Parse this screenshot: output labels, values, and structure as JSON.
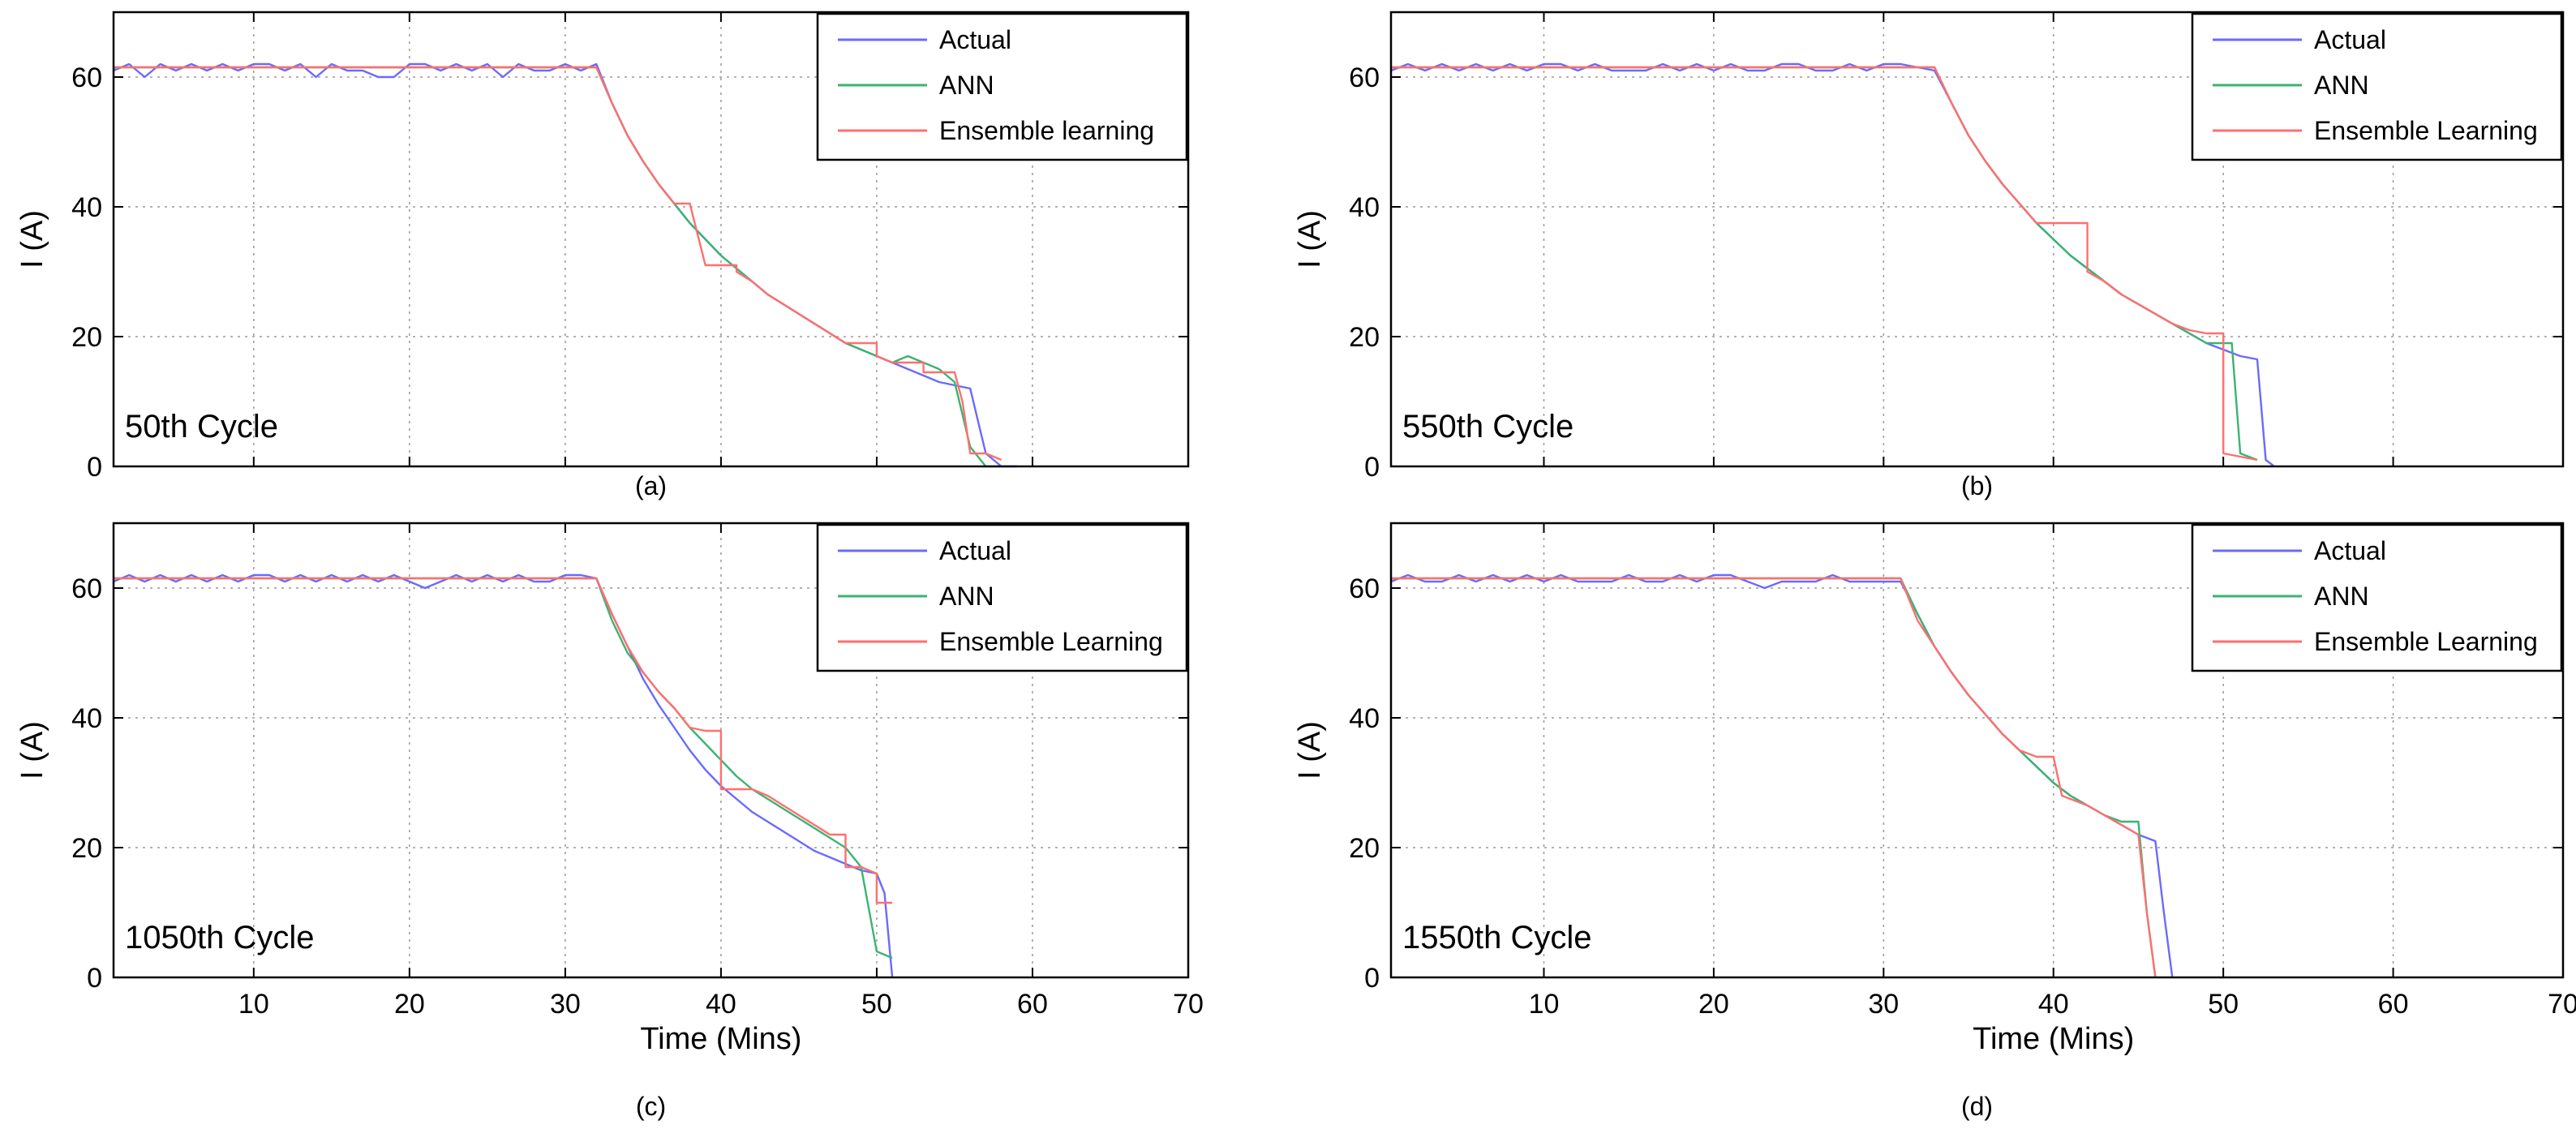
{
  "colors": {
    "actual": "#6a6aff",
    "ann": "#3cb371",
    "ensemble": "#ff6f6f",
    "axis": "#000000",
    "grid": "#9a9a9a"
  },
  "chart_data": [
    {
      "type": "line",
      "panel": "(a)",
      "annotation": "50th Cycle",
      "xlabel": "",
      "ylabel": "I (A)",
      "xlim": [
        1,
        70
      ],
      "ylim": [
        0,
        70
      ],
      "xticks": [
        10,
        20,
        30,
        40,
        50,
        60,
        70
      ],
      "yticks": [
        0,
        20,
        40,
        60
      ],
      "show_x_ticklabels": false,
      "legend": "top-right",
      "series": [
        {
          "name": "Actual",
          "key": "actual",
          "x": [
            1,
            2,
            3,
            4,
            5,
            6,
            7,
            8,
            9,
            10,
            11,
            12,
            13,
            14,
            15,
            16,
            17,
            18,
            19,
            20,
            21,
            22,
            23,
            24,
            25,
            26,
            27,
            28,
            29,
            30,
            31,
            32,
            33,
            34,
            35,
            36,
            37,
            38,
            39,
            40,
            41,
            42,
            43,
            44,
            45,
            46,
            47,
            48,
            49,
            50,
            51,
            52,
            53,
            54,
            55,
            56,
            57,
            58,
            59
          ],
          "y": [
            61,
            62,
            60,
            62,
            61,
            62,
            61,
            62,
            61,
            62,
            62,
            61,
            62,
            60,
            62,
            61,
            61,
            60,
            60,
            62,
            62,
            61,
            62,
            61,
            62,
            60,
            62,
            61,
            61,
            62,
            61,
            62,
            56,
            51,
            47,
            43.5,
            40.5,
            37.5,
            35,
            32.5,
            30.5,
            28.5,
            26.5,
            25,
            23.5,
            22,
            20.5,
            19,
            18,
            17,
            16,
            15,
            14,
            13,
            12.5,
            12,
            2,
            0,
            0
          ]
        },
        {
          "name": "ANN",
          "key": "ann",
          "x": [
            1,
            5,
            10,
            15,
            20,
            25,
            30,
            32,
            33,
            34,
            35,
            36,
            37,
            38,
            39,
            40,
            41,
            42,
            43,
            44,
            45,
            46,
            47,
            48,
            49,
            50,
            51,
            52,
            53,
            54,
            55,
            56,
            57,
            58
          ],
          "y": [
            61.5,
            61.5,
            61.5,
            61.5,
            61.5,
            61.5,
            61.5,
            61.5,
            56,
            51,
            47,
            43.5,
            40.5,
            37.5,
            35,
            32.5,
            30.5,
            28.5,
            26.5,
            25,
            23.5,
            22,
            20.5,
            19,
            18,
            17,
            16,
            17,
            16,
            15,
            13,
            3,
            0,
            0
          ]
        },
        {
          "name": "Ensemble learning",
          "key": "ensemble",
          "x": [
            1,
            5,
            10,
            15,
            20,
            25,
            30,
            32,
            33,
            34,
            35,
            36,
            37,
            38,
            39,
            40,
            41,
            41,
            42,
            43,
            44,
            45,
            46,
            47,
            48,
            49,
            50,
            50,
            51,
            52,
            53,
            53,
            54,
            55,
            55.5,
            56,
            57,
            58
          ],
          "y": [
            61.5,
            61.5,
            61.5,
            61.5,
            61.5,
            61.5,
            61.5,
            61.5,
            56,
            51,
            47,
            43.5,
            40.5,
            40.5,
            31,
            31,
            31,
            30,
            28.5,
            26.5,
            25,
            23.5,
            22,
            20.5,
            19,
            19,
            19,
            17,
            16,
            16,
            16,
            14.5,
            14.5,
            14.5,
            10,
            2,
            2,
            1
          ]
        }
      ]
    },
    {
      "type": "line",
      "panel": "(b)",
      "annotation": "550th Cycle",
      "xlabel": "",
      "ylabel": "I (A)",
      "xlim": [
        1,
        70
      ],
      "ylim": [
        0,
        70
      ],
      "xticks": [
        10,
        20,
        30,
        40,
        50,
        60,
        70
      ],
      "yticks": [
        0,
        20,
        40,
        60
      ],
      "show_x_ticklabels": false,
      "legend": "top-right",
      "series": [
        {
          "name": "Actual",
          "key": "actual",
          "x": [
            1,
            2,
            3,
            4,
            5,
            6,
            7,
            8,
            9,
            10,
            11,
            12,
            13,
            14,
            15,
            16,
            17,
            18,
            19,
            20,
            21,
            22,
            23,
            24,
            25,
            26,
            27,
            28,
            29,
            30,
            31,
            32,
            33,
            34,
            35,
            36,
            37,
            38,
            39,
            40,
            41,
            42,
            43,
            44,
            45,
            46,
            47,
            48,
            49,
            50,
            51,
            52,
            52.5,
            53
          ],
          "y": [
            61,
            62,
            61,
            62,
            61,
            62,
            61,
            62,
            61,
            62,
            62,
            61,
            62,
            61,
            61,
            61,
            62,
            61,
            62,
            61,
            62,
            61,
            61,
            62,
            62,
            61,
            61,
            62,
            61,
            62,
            62,
            61.5,
            61,
            56,
            51,
            47,
            43.5,
            40.5,
            37.5,
            35,
            32.5,
            30.5,
            28.5,
            26.5,
            25,
            23.5,
            22,
            20.5,
            19,
            18,
            17,
            16.5,
            1,
            0
          ]
        },
        {
          "name": "ANN",
          "key": "ann",
          "x": [
            1,
            5,
            10,
            15,
            20,
            25,
            30,
            33,
            34,
            35,
            36,
            37,
            38,
            39,
            40,
            41,
            42,
            43,
            44,
            45,
            46,
            47,
            48,
            49,
            50,
            50.5,
            51,
            52
          ],
          "y": [
            61.5,
            61.5,
            61.5,
            61.5,
            61.5,
            61.5,
            61.5,
            61.5,
            56,
            51,
            47,
            43.5,
            40.5,
            37.5,
            35,
            32.5,
            30.5,
            28.5,
            26.5,
            25,
            23.5,
            22,
            20.5,
            19,
            19,
            19,
            2,
            1
          ]
        },
        {
          "name": "Ensemble Learning",
          "key": "ensemble",
          "x": [
            1,
            5,
            10,
            15,
            20,
            25,
            30,
            33,
            34,
            35,
            36,
            37,
            38,
            39,
            40,
            41,
            42,
            42,
            43,
            44,
            45,
            46,
            47,
            48,
            49,
            50,
            50,
            51,
            52
          ],
          "y": [
            61.5,
            61.5,
            61.5,
            61.5,
            61.5,
            61.5,
            61.5,
            61.5,
            56,
            51,
            47,
            43.5,
            40.5,
            37.5,
            37.5,
            37.5,
            37.5,
            30,
            28.5,
            26.5,
            25,
            23.5,
            22,
            21,
            20.5,
            20.5,
            2,
            1.5,
            1
          ]
        }
      ]
    },
    {
      "type": "line",
      "panel": "(c)",
      "annotation": "1050th Cycle",
      "xlabel": "Time (Mins)",
      "ylabel": "I (A)",
      "xlim": [
        1,
        70
      ],
      "ylim": [
        0,
        70
      ],
      "xticks": [
        10,
        20,
        30,
        40,
        50,
        60,
        70
      ],
      "yticks": [
        0,
        20,
        40,
        60
      ],
      "show_x_ticklabels": true,
      "legend": "top-right",
      "series": [
        {
          "name": "Actual",
          "key": "actual",
          "x": [
            1,
            2,
            3,
            4,
            5,
            6,
            7,
            8,
            9,
            10,
            11,
            12,
            13,
            14,
            15,
            16,
            17,
            18,
            19,
            20,
            21,
            22,
            23,
            24,
            25,
            26,
            27,
            28,
            29,
            30,
            31,
            32,
            33,
            34,
            35,
            36,
            37,
            38,
            39,
            40,
            41,
            42,
            43,
            44,
            45,
            46,
            47,
            48,
            49,
            50,
            50.5,
            51
          ],
          "y": [
            61,
            62,
            61,
            62,
            61,
            62,
            61,
            62,
            61,
            62,
            62,
            61,
            62,
            61,
            62,
            61,
            62,
            61,
            62,
            61,
            60,
            61,
            62,
            61,
            62,
            61,
            62,
            61,
            61,
            62,
            62,
            61.5,
            56,
            51,
            46,
            42,
            38.5,
            35,
            32,
            29.5,
            27.5,
            25.5,
            24,
            22.5,
            21,
            19.5,
            18.5,
            17.5,
            16.5,
            16,
            13,
            0
          ]
        },
        {
          "name": "ANN",
          "key": "ann",
          "x": [
            1,
            5,
            10,
            15,
            20,
            25,
            30,
            32,
            33,
            34,
            35,
            36,
            37,
            38,
            39,
            40,
            41,
            42,
            43,
            44,
            45,
            46,
            47,
            48,
            49,
            50,
            51
          ],
          "y": [
            61.5,
            61.5,
            61.5,
            61.5,
            61.5,
            61.5,
            61.5,
            61.5,
            55,
            50,
            47,
            44,
            41.5,
            38.5,
            36,
            33.5,
            31,
            29,
            27.5,
            26,
            24.5,
            23,
            21.5,
            20,
            17,
            4,
            3
          ]
        },
        {
          "name": "Ensemble Learning",
          "key": "ensemble",
          "x": [
            1,
            5,
            10,
            15,
            20,
            25,
            30,
            32,
            33,
            34,
            35,
            36,
            37,
            38,
            39,
            40,
            40,
            41,
            42,
            43,
            44,
            45,
            46,
            47,
            48,
            48,
            49,
            50,
            50,
            51
          ],
          "y": [
            61.5,
            61.5,
            61.5,
            61.5,
            61.5,
            61.5,
            61.5,
            61.5,
            56,
            51,
            47,
            44,
            41.5,
            38.5,
            38,
            38,
            29,
            29,
            29,
            28,
            26.5,
            25,
            23.5,
            22,
            22,
            17,
            17,
            16,
            11.5,
            11.5
          ]
        }
      ]
    },
    {
      "type": "line",
      "panel": "(d)",
      "annotation": "1550th Cycle",
      "xlabel": "Time (Mins)",
      "ylabel": "I (A)",
      "xlim": [
        1,
        70
      ],
      "ylim": [
        0,
        70
      ],
      "xticks": [
        10,
        20,
        30,
        40,
        50,
        60,
        70
      ],
      "yticks": [
        0,
        20,
        40,
        60
      ],
      "show_x_ticklabels": true,
      "legend": "top-right",
      "series": [
        {
          "name": "Actual",
          "key": "actual",
          "x": [
            1,
            2,
            3,
            4,
            5,
            6,
            7,
            8,
            9,
            10,
            11,
            12,
            13,
            14,
            15,
            16,
            17,
            18,
            19,
            20,
            21,
            22,
            23,
            24,
            25,
            26,
            27,
            28,
            29,
            30,
            31,
            32,
            33,
            34,
            35,
            36,
            37,
            38,
            39,
            40,
            41,
            42,
            43,
            44,
            45,
            46,
            46.5,
            47
          ],
          "y": [
            61,
            62,
            61,
            61,
            62,
            61,
            62,
            61,
            62,
            61,
            62,
            61,
            61,
            61,
            62,
            61,
            61,
            62,
            61,
            62,
            62,
            61,
            60,
            61,
            61,
            61,
            62,
            61,
            61,
            61,
            61,
            56,
            51,
            47,
            43.5,
            40.5,
            37.5,
            35,
            32.5,
            30,
            28,
            26.5,
            25,
            23.5,
            22,
            21,
            10,
            0
          ]
        },
        {
          "name": "ANN",
          "key": "ann",
          "x": [
            1,
            5,
            10,
            15,
            20,
            25,
            30,
            31,
            32,
            33,
            34,
            35,
            36,
            37,
            38,
            39,
            40,
            41,
            42,
            43,
            44,
            45,
            45.5,
            46
          ],
          "y": [
            61.5,
            61.5,
            61.5,
            61.5,
            61.5,
            61.5,
            61.5,
            61.5,
            56,
            51,
            47,
            43.5,
            40.5,
            37.5,
            35,
            32.5,
            30,
            28,
            26.5,
            25,
            24,
            24,
            10,
            0
          ]
        },
        {
          "name": "Ensemble Learning",
          "key": "ensemble",
          "x": [
            1,
            5,
            10,
            15,
            20,
            25,
            30,
            31,
            32,
            33,
            34,
            35,
            36,
            37,
            38,
            39,
            40,
            40.5,
            41,
            42,
            43,
            44,
            45,
            45.5,
            46
          ],
          "y": [
            61.5,
            61.5,
            61.5,
            61.5,
            61.5,
            61.5,
            61.5,
            61.5,
            55,
            51,
            47,
            43.5,
            40.5,
            37.5,
            35,
            34,
            34,
            28,
            27.5,
            26.5,
            25,
            23.5,
            22,
            10,
            0
          ]
        }
      ]
    }
  ]
}
